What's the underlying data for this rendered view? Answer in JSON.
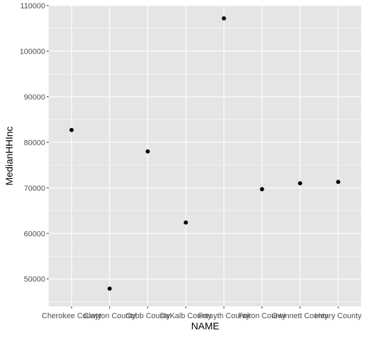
{
  "chart_data": {
    "type": "scatter",
    "xlabel": "NAME",
    "ylabel": "MedianHHInc",
    "categories": [
      "Cherokee County",
      "Clayton County",
      "Cobb County",
      "DeKalb County",
      "Forsyth County",
      "Fulton County",
      "Gwinnett County",
      "Henry County"
    ],
    "values": [
      82700,
      47900,
      78000,
      62400,
      107200,
      69700,
      71000,
      71300
    ],
    "ylim": [
      44000,
      110000
    ],
    "yticks": [
      50000,
      60000,
      70000,
      80000,
      90000,
      100000,
      110000
    ],
    "ytick_labels": [
      "50000",
      "60000",
      "70000",
      "80000",
      "90000",
      "100000",
      "110000"
    ],
    "grid": true,
    "legend": "none",
    "colors": {
      "panel_bg": "#e5e5e5",
      "grid": "#ffffff",
      "point": "#000000"
    }
  }
}
